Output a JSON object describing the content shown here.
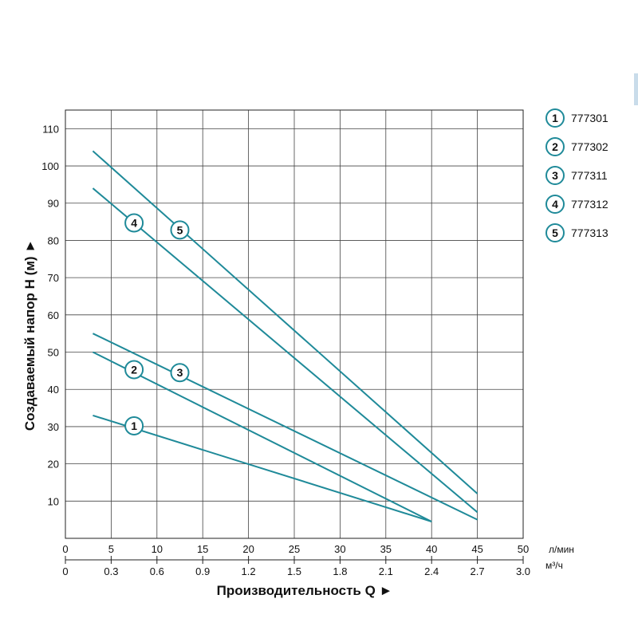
{
  "chart_data": {
    "type": "line",
    "ylabel": "Создаваемый напор H (м) ►",
    "xlabel": "Производительность Q ►",
    "x_primary_unit": "л/мин",
    "x_secondary_unit": "м³/ч",
    "x_primary_ticks": [
      "0",
      "5",
      "10",
      "15",
      "20",
      "25",
      "30",
      "35",
      "40",
      "45",
      "50"
    ],
    "x_secondary_ticks": [
      "0",
      "0.3",
      "0.6",
      "0.9",
      "1.2",
      "1.5",
      "1.8",
      "2.1",
      "2.4",
      "2.7",
      "3.0"
    ],
    "y_ticks": [
      "10",
      "20",
      "30",
      "40",
      "50",
      "60",
      "70",
      "80",
      "90",
      "100",
      "110"
    ],
    "xlim": [
      0,
      50
    ],
    "ylim": [
      0,
      115
    ],
    "grid": true,
    "legend_position": "right",
    "line_color": "#1f8a99",
    "series": [
      {
        "name": "777301",
        "label": "1",
        "points": [
          [
            3,
            33
          ],
          [
            40,
            4.5
          ]
        ],
        "marker_at": [
          7.5,
          30.2
        ]
      },
      {
        "name": "777302",
        "label": "2",
        "points": [
          [
            3,
            50
          ],
          [
            40,
            4.5
          ]
        ],
        "marker_at": [
          7.5,
          45.3
        ]
      },
      {
        "name": "777311",
        "label": "3",
        "points": [
          [
            3,
            55
          ],
          [
            45,
            5
          ]
        ],
        "marker_at": [
          12.5,
          44.5
        ]
      },
      {
        "name": "777312",
        "label": "4",
        "points": [
          [
            3,
            94
          ],
          [
            45,
            7
          ]
        ],
        "marker_at": [
          7.5,
          84.7
        ]
      },
      {
        "name": "777313",
        "label": "5",
        "points": [
          [
            3,
            104
          ],
          [
            45,
            12
          ]
        ],
        "marker_at": [
          12.5,
          82.8
        ]
      }
    ]
  }
}
